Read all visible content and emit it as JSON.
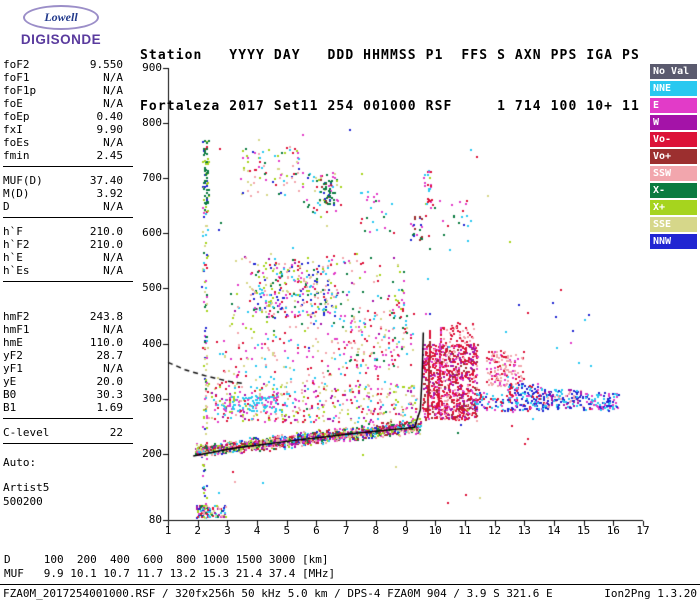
{
  "logo": {
    "line1": "Lowell",
    "line2": "DIGISONDE"
  },
  "header": {
    "line1": "Station   YYYY DAY   DDD HHMMSS P1  FFS S AXN PPS IGA PS",
    "line2": "Fortaleza 2017 Set11 254 001000 RSF     1 714 100 10+ 11"
  },
  "params": {
    "groups": [
      [
        {
          "label": "foF2",
          "value": "9.550"
        },
        {
          "label": "foF1",
          "value": "N/A"
        },
        {
          "label": "foF1p",
          "value": "N/A"
        },
        {
          "label": "foE",
          "value": "N/A"
        },
        {
          "label": "foEp",
          "value": "0.40"
        },
        {
          "label": "fxI",
          "value": "9.90"
        },
        {
          "label": "foEs",
          "value": "N/A"
        },
        {
          "label": "fmin",
          "value": "2.45"
        }
      ],
      [
        {
          "label": "MUF(D)",
          "value": "37.40"
        },
        {
          "label": "M(D)",
          "value": "3.92"
        },
        {
          "label": "D",
          "value": "N/A"
        }
      ],
      [
        {
          "label": "h`F",
          "value": "210.0"
        },
        {
          "label": "h`F2",
          "value": "210.0"
        },
        {
          "label": "h`E",
          "value": "N/A"
        },
        {
          "label": "h`Es",
          "value": "N/A"
        }
      ],
      [
        {
          "label": "hmF2",
          "value": "243.8"
        },
        {
          "label": "hmF1",
          "value": "N/A"
        },
        {
          "label": "hmE",
          "value": "110.0"
        },
        {
          "label": "yF2",
          "value": "28.7"
        },
        {
          "label": "yF1",
          "value": "N/A"
        },
        {
          "label": "yE",
          "value": "20.0"
        },
        {
          "label": "B0",
          "value": "30.3"
        },
        {
          "label": "B1",
          "value": "1.69"
        }
      ],
      [
        {
          "label": "C-level",
          "value": "22"
        }
      ]
    ],
    "footer": [
      "Auto:",
      "Artist5",
      "500200"
    ]
  },
  "legend": {
    "items": [
      {
        "label": "No Val",
        "color": "#5a5a6e"
      },
      {
        "label": "NNE",
        "color": "#29c8f0"
      },
      {
        "label": "E",
        "color": "#e23bc8"
      },
      {
        "label": "W",
        "color": "#a413a8"
      },
      {
        "label": "Vo-",
        "color": "#dc1238"
      },
      {
        "label": "Vo+",
        "color": "#9c2f2f"
      },
      {
        "label": "SSW",
        "color": "#f2a6ad"
      },
      {
        "label": "X-",
        "color": "#0b7b40"
      },
      {
        "label": "X+",
        "color": "#a6d41e"
      },
      {
        "label": "SSE",
        "color": "#d6d78a"
      },
      {
        "label": "NNW",
        "color": "#2126d2"
      }
    ]
  },
  "scale_table": {
    "d_row": "D     100  200  400  600  800 1000 1500 3000 [km]",
    "muf_row": "MUF   9.9 10.1 10.7 11.7 13.2 15.3 21.4 37.4 [MHz]"
  },
  "status_bar": {
    "left": "FZA0M_2017254001000.RSF / 320fx256h 50 kHz 5.0 km / DPS-4 FZA0M 904 / 3.9 S 321.6 E",
    "right": "Ion2Png 1.3.20"
  },
  "chart_data": {
    "type": "scatter",
    "title": "RSF ionogram, Fortaleza, 2017 day 254, 00:10:00",
    "xlabel": "[MHz]",
    "ylabel": "[km]",
    "xlim": [
      1,
      17
    ],
    "ylim": [
      80,
      900
    ],
    "grid": false,
    "x_ticks": [
      1,
      2,
      3,
      4,
      5,
      6,
      7,
      8,
      9,
      10,
      11,
      12,
      13,
      14,
      15,
      16,
      17
    ],
    "y_ticks": [
      80,
      200,
      300,
      400,
      500,
      600,
      700,
      800,
      900
    ],
    "palette": {
      "noval": "#5a5a6e",
      "nne": "#29c8f0",
      "e": "#e23bc8",
      "w": "#a413a8",
      "vom": "#dc1238",
      "vop": "#9c2f2f",
      "ssw": "#f2a6ad",
      "xm": "#0b7b40",
      "xp": "#a6d41e",
      "sse": "#d6d78a",
      "nnw": "#2126d2"
    },
    "clusters": [
      {
        "name": "f-trace-main",
        "type": "band",
        "x0": 1.9,
        "y0": 206,
        "x1": 9.5,
        "y1": 252,
        "spread": 11,
        "count": 1500,
        "colors": [
          "vom",
          "e",
          "xm",
          "nne",
          "xp",
          "ssw",
          "nnw",
          "sse",
          "w",
          "vop"
        ]
      },
      {
        "name": "f-trace-diffuse",
        "type": "box",
        "x0": 2.2,
        "x1": 9.4,
        "y0": 258,
        "y1": 330,
        "count": 420,
        "colors": [
          "ssw",
          "e",
          "nne",
          "vom",
          "xp",
          "sse",
          "w"
        ]
      },
      {
        "name": "f-trace-halo",
        "type": "box",
        "x0": 2.5,
        "x1": 8.8,
        "y0": 330,
        "y1": 415,
        "count": 150,
        "colors": [
          "ssw",
          "e",
          "nne",
          "vom",
          "sse"
        ]
      },
      {
        "name": "cyan-band",
        "type": "box",
        "x0": 2.8,
        "x1": 4.7,
        "y0": 278,
        "y1": 306,
        "count": 90,
        "colors": [
          "nne",
          "nne",
          "nne",
          "e"
        ]
      },
      {
        "name": "spread-f-blob",
        "type": "box",
        "x0": 9.55,
        "x1": 11.4,
        "y0": 262,
        "y1": 400,
        "count": 850,
        "colors": [
          "vom",
          "vom",
          "vom",
          "e",
          "ssw",
          "vop",
          "w"
        ]
      },
      {
        "name": "spread-f-streak-1",
        "type": "band",
        "x0": 9.72,
        "y0": 268,
        "x1": 9.8,
        "y1": 425,
        "spread": 4,
        "count": 110,
        "colors": [
          "vom",
          "vop"
        ]
      },
      {
        "name": "spread-f-streak-2",
        "type": "band",
        "x0": 10.08,
        "y0": 275,
        "x1": 10.16,
        "y1": 432,
        "spread": 4,
        "count": 90,
        "colors": [
          "vom",
          "e"
        ]
      },
      {
        "name": "blob-top-fringe",
        "type": "box",
        "x0": 10.2,
        "x1": 11.3,
        "y0": 395,
        "y1": 440,
        "count": 60,
        "colors": [
          "vom",
          "ssw"
        ]
      },
      {
        "name": "pink-patch",
        "type": "box",
        "x0": 11.7,
        "x1": 12.95,
        "y0": 325,
        "y1": 388,
        "count": 150,
        "colors": [
          "ssw",
          "ssw",
          "vom",
          "e"
        ]
      },
      {
        "name": "blue-wing-1",
        "type": "box",
        "x0": 12.4,
        "x1": 13.65,
        "y0": 278,
        "y1": 328,
        "count": 170,
        "colors": [
          "nnw",
          "nnw",
          "nne",
          "e",
          "vom"
        ]
      },
      {
        "name": "blue-wing-2",
        "type": "box",
        "x0": 13.65,
        "x1": 14.95,
        "y0": 283,
        "y1": 318,
        "count": 130,
        "colors": [
          "nnw",
          "nnw",
          "nne",
          "w",
          "ssw"
        ]
      },
      {
        "name": "blue-wing-3",
        "type": "box",
        "x0": 14.95,
        "x1": 16.15,
        "y0": 280,
        "y1": 312,
        "count": 90,
        "colors": [
          "nnw",
          "nne",
          "e"
        ]
      },
      {
        "name": "gap-echoes",
        "type": "box",
        "x0": 11.25,
        "x1": 12.35,
        "y0": 278,
        "y1": 312,
        "count": 60,
        "colors": [
          "nne",
          "nnw",
          "e",
          "vom"
        ]
      },
      {
        "name": "second-hop-core",
        "type": "box",
        "x0": 3.8,
        "x1": 6.7,
        "y0": 448,
        "y1": 548,
        "count": 260,
        "colors": [
          "vom",
          "e",
          "nne",
          "xm",
          "xp",
          "ssw",
          "nnw",
          "sse"
        ]
      },
      {
        "name": "second-hop-fringe",
        "type": "box",
        "x0": 3.1,
        "x1": 9.0,
        "y0": 418,
        "y1": 565,
        "count": 170,
        "colors": [
          "vom",
          "e",
          "nne",
          "xm",
          "xp",
          "ssw",
          "sse",
          "w"
        ]
      },
      {
        "name": "second-hop-right",
        "type": "box",
        "x0": 6.8,
        "x1": 9.3,
        "y0": 355,
        "y1": 470,
        "count": 110,
        "colors": [
          "vom",
          "e",
          "xm",
          "ssw",
          "nne",
          "sse"
        ]
      },
      {
        "name": "third-hop-a",
        "type": "box",
        "x0": 3.4,
        "x1": 5.4,
        "y0": 668,
        "y1": 762,
        "count": 80,
        "colors": [
          "vom",
          "e",
          "nne",
          "xm",
          "xp",
          "ssw",
          "nnw",
          "sse"
        ]
      },
      {
        "name": "third-hop-b",
        "type": "box",
        "x0": 5.5,
        "x1": 6.8,
        "y0": 638,
        "y1": 712,
        "count": 55,
        "colors": [
          "vom",
          "e",
          "nne",
          "xm",
          "xp",
          "sse"
        ]
      },
      {
        "name": "third-hop-c",
        "type": "box",
        "x0": 7.4,
        "x1": 8.6,
        "y0": 600,
        "y1": 680,
        "count": 25,
        "colors": [
          "vom",
          "e",
          "xm",
          "nne"
        ]
      },
      {
        "name": "green-knot",
        "type": "box",
        "x0": 6.1,
        "x1": 6.6,
        "y0": 652,
        "y1": 700,
        "count": 38,
        "colors": [
          "xm",
          "xm",
          "nnw",
          "vop"
        ]
      },
      {
        "name": "knot-9mhz",
        "type": "box",
        "x0": 9.15,
        "x1": 9.55,
        "y0": 588,
        "y1": 632,
        "count": 22,
        "colors": [
          "xm",
          "vop",
          "e",
          "nnw"
        ]
      },
      {
        "name": "column-9-7mhz",
        "type": "box",
        "x0": 9.6,
        "x1": 9.85,
        "y0": 650,
        "y1": 725,
        "count": 25,
        "colors": [
          "vom",
          "e",
          "nne",
          "xp"
        ]
      },
      {
        "name": "sparse-upper-right",
        "type": "box",
        "x0": 9.6,
        "x1": 11.3,
        "y0": 570,
        "y1": 662,
        "count": 26,
        "colors": [
          "vom",
          "e",
          "nne",
          "xm"
        ]
      },
      {
        "name": "interference-stripe",
        "type": "box",
        "x0": 2.14,
        "x1": 2.3,
        "y0": 95,
        "y1": 785,
        "count": 120,
        "colors": [
          "xm",
          "nne",
          "xp",
          "vom",
          "sse",
          "e",
          "nnw"
        ]
      },
      {
        "name": "stripe-green-top",
        "type": "box",
        "x0": 2.18,
        "x1": 2.34,
        "y0": 640,
        "y1": 775,
        "count": 55,
        "colors": [
          "xm",
          "xp",
          "xm"
        ]
      },
      {
        "name": "es-cluster",
        "type": "box",
        "x0": 1.92,
        "x1": 2.95,
        "y0": 85,
        "y1": 108,
        "count": 110,
        "colors": [
          "vom",
          "e",
          "nne",
          "xm",
          "xp",
          "nnw",
          "sse",
          "ssw",
          "w"
        ]
      },
      {
        "name": "background-noise",
        "type": "box",
        "x0": 2.0,
        "x1": 12.5,
        "y0": 112,
        "y1": 800,
        "count": 70,
        "colors": [
          "vom",
          "e",
          "nne",
          "xm",
          "xp",
          "ssw",
          "nnw",
          "sse"
        ]
      },
      {
        "name": "noise-right",
        "type": "box",
        "x0": 12.5,
        "x1": 16.4,
        "y0": 210,
        "y1": 520,
        "count": 18,
        "colors": [
          "nnw",
          "nne",
          "e",
          "vom"
        ]
      }
    ],
    "overlays": [
      {
        "name": "artist-trace",
        "color": "#000000",
        "width": 1.5,
        "dash": [],
        "points": [
          [
            1.85,
            196
          ],
          [
            3.2,
            210
          ],
          [
            5.2,
            224
          ],
          [
            7.4,
            238
          ],
          [
            9.3,
            248
          ],
          [
            9.5,
            280
          ],
          [
            9.56,
            340
          ],
          [
            9.6,
            420
          ]
        ]
      },
      {
        "name": "extrapolated-trace",
        "color": "#111111",
        "width": 1.5,
        "dash": [
          5,
          4
        ],
        "points": [
          [
            1.0,
            366
          ],
          [
            1.6,
            352
          ],
          [
            2.3,
            341
          ],
          [
            3.0,
            332
          ],
          [
            3.6,
            327
          ]
        ]
      }
    ]
  }
}
